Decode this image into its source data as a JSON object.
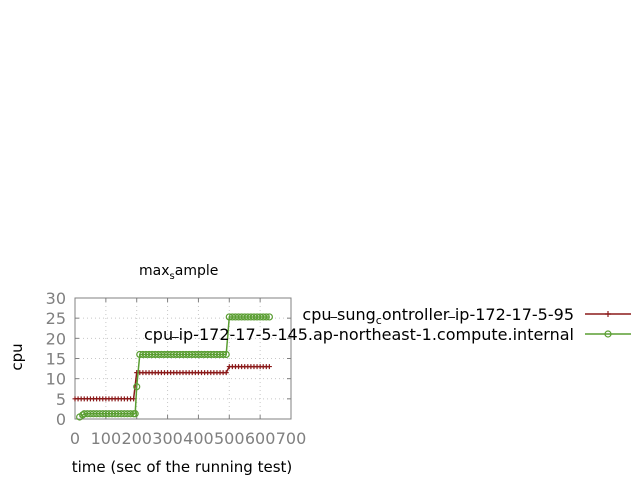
{
  "chart_data": {
    "type": "line",
    "title_main": "max",
    "title_sub": "s",
    "title_rest": "ample",
    "xlabel": "time (sec of the running test)",
    "ylabel": "cpu",
    "xlim": [
      0,
      700
    ],
    "ylim": [
      0,
      30
    ],
    "xticks": [
      0,
      100,
      200,
      300,
      400,
      500,
      600,
      700
    ],
    "yticks": [
      0,
      5,
      10,
      15,
      20,
      25,
      30
    ],
    "grid": true,
    "legend_position": "right",
    "series": [
      {
        "name": "cpu_sung_controller_ip-172-17-5-95",
        "legend_parts": [
          "cpu",
          "sung",
          "c",
          "ontroller",
          "ip-172-17-5-95"
        ],
        "color": "#8b1a1a",
        "marker": "plus",
        "x": [
          0,
          10,
          20,
          30,
          40,
          50,
          60,
          70,
          80,
          90,
          100,
          110,
          120,
          130,
          140,
          150,
          160,
          170,
          180,
          190,
          200,
          210,
          220,
          230,
          240,
          250,
          260,
          270,
          280,
          290,
          300,
          310,
          320,
          330,
          340,
          350,
          360,
          370,
          380,
          390,
          400,
          410,
          420,
          430,
          440,
          450,
          460,
          470,
          480,
          490,
          500,
          510,
          520,
          530,
          540,
          550,
          560,
          570,
          580,
          590,
          600,
          610,
          620,
          630
        ],
        "y": [
          5,
          5,
          5,
          5,
          5,
          5,
          5,
          5,
          5,
          5,
          5,
          5,
          5,
          5,
          5,
          5,
          5,
          5,
          5,
          5,
          11.5,
          11.5,
          11.5,
          11.5,
          11.5,
          11.5,
          11.5,
          11.5,
          11.5,
          11.5,
          11.5,
          11.5,
          11.5,
          11.5,
          11.5,
          11.5,
          11.5,
          11.5,
          11.5,
          11.5,
          11.5,
          11.5,
          11.5,
          11.5,
          11.5,
          11.5,
          11.5,
          11.5,
          11.5,
          11.5,
          13,
          13,
          13,
          13,
          13,
          13,
          13,
          13,
          13,
          13,
          13,
          13,
          13,
          13
        ]
      },
      {
        "name": "cpu_ip-172-17-5-145.ap-northeast-1.compute.internal",
        "legend_parts": [
          "cpu",
          "ip-172-17-5-145.ap-northeast-1.compute.internal"
        ],
        "color": "#5a9e32",
        "marker": "circle",
        "x": [
          15,
          25,
          30,
          40,
          50,
          60,
          70,
          80,
          90,
          100,
          110,
          120,
          130,
          140,
          150,
          160,
          170,
          180,
          190,
          195,
          200,
          210,
          220,
          230,
          240,
          250,
          260,
          270,
          280,
          290,
          300,
          310,
          320,
          330,
          340,
          350,
          360,
          370,
          380,
          390,
          400,
          410,
          420,
          430,
          440,
          450,
          460,
          470,
          480,
          490,
          500,
          510,
          520,
          530,
          540,
          550,
          560,
          570,
          580,
          590,
          600,
          610,
          620,
          630
        ],
        "y": [
          0.5,
          1,
          1.3,
          1.3,
          1.3,
          1.3,
          1.3,
          1.3,
          1.3,
          1.3,
          1.3,
          1.3,
          1.3,
          1.3,
          1.3,
          1.3,
          1.3,
          1.3,
          1.3,
          1.3,
          8,
          16,
          16,
          16,
          16,
          16,
          16,
          16,
          16,
          16,
          16,
          16,
          16,
          16,
          16,
          16,
          16,
          16,
          16,
          16,
          16,
          16,
          16,
          16,
          16,
          16,
          16,
          16,
          16,
          16,
          25.3,
          25.3,
          25.3,
          25.3,
          25.3,
          25.3,
          25.3,
          25.3,
          25.3,
          25.3,
          25.3,
          25.3,
          25.3,
          25.3
        ]
      }
    ]
  }
}
